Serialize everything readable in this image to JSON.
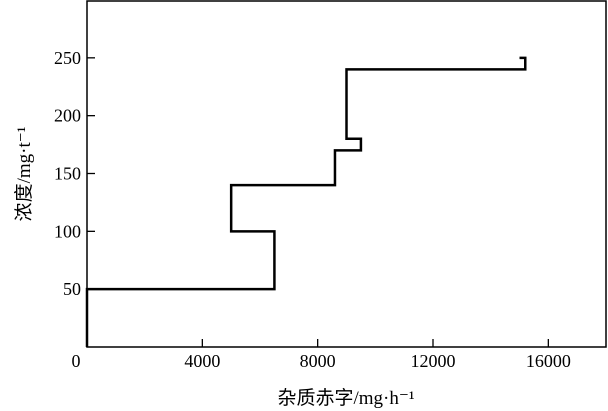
{
  "chart_data": {
    "type": "line",
    "title": "",
    "xlabel": "杂质赤字/mg·h⁻¹",
    "ylabel": "浓度/mg·t⁻¹",
    "xlim": [
      0,
      18000
    ],
    "ylim": [
      0,
      300
    ],
    "xticks": [
      0,
      4000,
      8000,
      12000,
      16000
    ],
    "yticks": [
      50,
      100,
      150,
      200,
      250
    ],
    "xtick_labels": [
      "0",
      "4000",
      "8000",
      "12000",
      "16000"
    ],
    "ytick_labels": [
      "50",
      "100",
      "150",
      "200",
      "250"
    ],
    "grid": false,
    "line_color": "#000000",
    "series": [
      {
        "x": [
          0,
          0,
          6500,
          6500,
          5000,
          5000,
          8600,
          8600,
          9500,
          9500,
          9000,
          9000,
          15200,
          15200,
          15000
        ],
        "y": [
          0,
          50,
          50,
          100,
          100,
          140,
          140,
          170,
          170,
          180,
          180,
          240,
          240,
          250,
          250
        ]
      }
    ]
  }
}
